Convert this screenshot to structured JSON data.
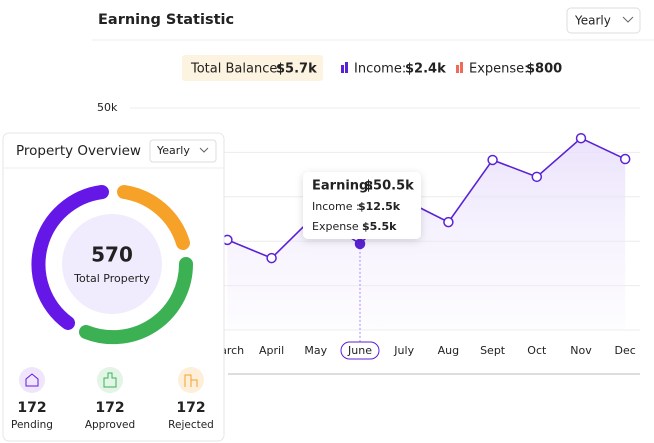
{
  "header": {
    "title": "Earning Statistic",
    "period": "Yearly"
  },
  "summary": {
    "total_balance_label": "Total Balance:",
    "total_balance": "$5.7k",
    "income_label": "Income:",
    "income": "$2.4k",
    "expense_label": "Expense:",
    "expense": "$800"
  },
  "chart_data": {
    "type": "line",
    "categories": [
      null,
      null,
      "March",
      "April",
      "May",
      "June",
      "July",
      "Aug",
      "Sept",
      "Oct",
      "Nov",
      "Dec"
    ],
    "series": [
      {
        "name": "Earning",
        "color": "#5b21d6",
        "values": [
          null,
          null,
          20300,
          16200,
          26000,
          19400,
          29300,
          24300,
          38300,
          34500,
          43200,
          38500
        ]
      }
    ],
    "ylim": [
      0,
      50000
    ],
    "yticks": [
      0,
      10000,
      20000,
      30000,
      40000,
      {
        "value": 50000,
        "label": "50k"
      }
    ],
    "grid": true,
    "tooltip": {
      "earning_label": "Earning:",
      "earning": "$50.5k",
      "income_label": "Income :",
      "income": "$12.5k",
      "expense_label": "Expense :",
      "expense": "$5.5k"
    }
  },
  "property_overview": {
    "title": "Property Overview",
    "period": "Yearly",
    "total": 570,
    "total_label": "Total Property",
    "stats": [
      {
        "value": 172,
        "label": "Pending"
      },
      {
        "value": 172,
        "label": "Approved"
      },
      {
        "value": 172,
        "label": "Rejected"
      }
    ]
  }
}
